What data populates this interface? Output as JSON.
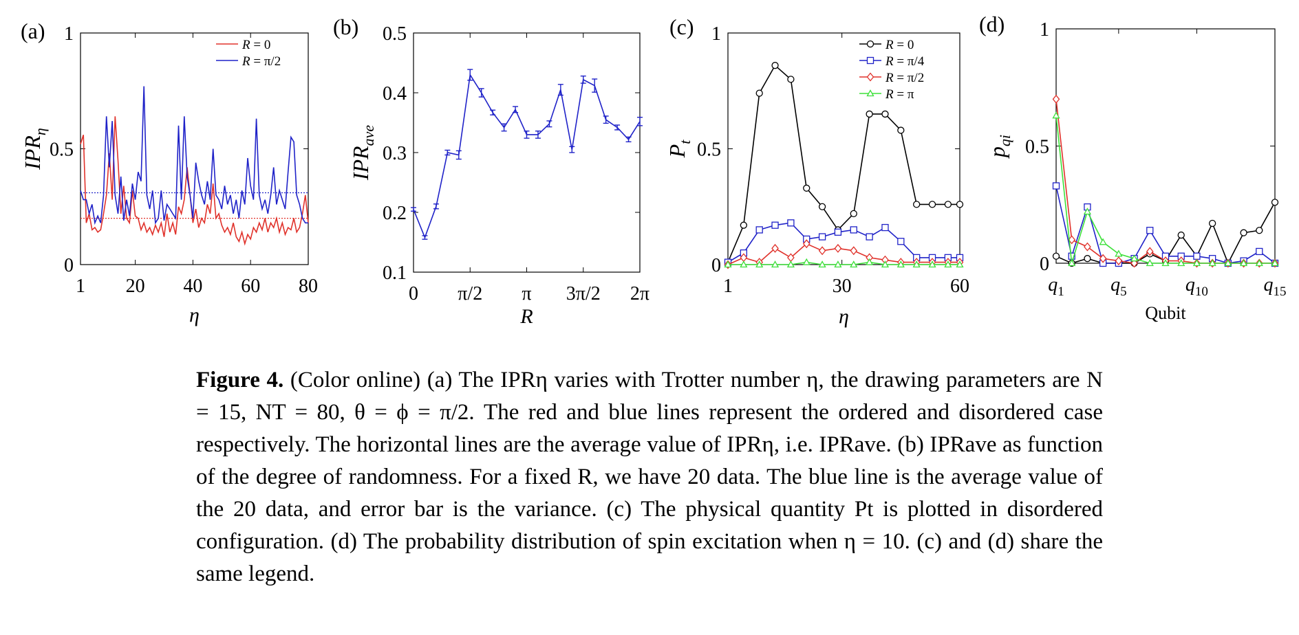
{
  "chart_data": [
    {
      "type": "line",
      "panel_label": "(a)",
      "xlabel": "η",
      "ylabel": "IPR_η",
      "xlim": [
        1,
        80
      ],
      "ylim": [
        0,
        1
      ],
      "xticks": [
        1,
        20,
        40,
        60,
        80
      ],
      "yticks": [
        0,
        0.5,
        1
      ],
      "x": [
        1,
        2,
        3,
        4,
        5,
        6,
        7,
        8,
        9,
        10,
        11,
        12,
        13,
        14,
        15,
        16,
        17,
        18,
        19,
        20,
        21,
        22,
        23,
        24,
        25,
        26,
        27,
        28,
        29,
        30,
        31,
        32,
        33,
        34,
        35,
        36,
        37,
        38,
        39,
        40,
        41,
        42,
        43,
        44,
        45,
        46,
        47,
        48,
        49,
        50,
        51,
        52,
        53,
        54,
        55,
        56,
        57,
        58,
        59,
        60,
        61,
        62,
        63,
        64,
        65,
        66,
        67,
        68,
        69,
        70,
        71,
        72,
        73,
        74,
        75,
        76,
        77,
        78,
        79,
        80
      ],
      "series": [
        {
          "name": "R = 0",
          "color": "#e0312a",
          "values": [
            0.52,
            0.56,
            0.18,
            0.22,
            0.15,
            0.16,
            0.14,
            0.15,
            0.22,
            0.3,
            0.48,
            0.28,
            0.64,
            0.45,
            0.22,
            0.34,
            0.2,
            0.18,
            0.32,
            0.21,
            0.2,
            0.15,
            0.18,
            0.14,
            0.16,
            0.13,
            0.17,
            0.14,
            0.18,
            0.12,
            0.22,
            0.14,
            0.18,
            0.13,
            0.25,
            0.22,
            0.28,
            0.42,
            0.3,
            0.18,
            0.24,
            0.16,
            0.2,
            0.18,
            0.26,
            0.22,
            0.35,
            0.2,
            0.22,
            0.17,
            0.14,
            0.16,
            0.13,
            0.18,
            0.12,
            0.1,
            0.14,
            0.09,
            0.13,
            0.11,
            0.16,
            0.14,
            0.18,
            0.15,
            0.2,
            0.14,
            0.18,
            0.16,
            0.2,
            0.14,
            0.18,
            0.13,
            0.16,
            0.15,
            0.2,
            0.14,
            0.16,
            0.22,
            0.3,
            0.18
          ]
        },
        {
          "name": "R = π/2",
          "color": "#1f22c8",
          "values": [
            0.32,
            0.28,
            0.28,
            0.22,
            0.26,
            0.18,
            0.21,
            0.18,
            0.3,
            0.64,
            0.42,
            0.62,
            0.3,
            0.22,
            0.38,
            0.19,
            0.28,
            0.21,
            0.35,
            0.28,
            0.4,
            0.36,
            0.77,
            0.3,
            0.24,
            0.32,
            0.18,
            0.2,
            0.32,
            0.19,
            0.26,
            0.24,
            0.22,
            0.2,
            0.6,
            0.28,
            0.64,
            0.38,
            0.3,
            0.2,
            0.44,
            0.36,
            0.3,
            0.26,
            0.36,
            0.28,
            0.5,
            0.3,
            0.28,
            0.24,
            0.34,
            0.26,
            0.3,
            0.22,
            0.28,
            0.2,
            0.32,
            0.26,
            0.46,
            0.34,
            0.28,
            0.63,
            0.3,
            0.24,
            0.28,
            0.22,
            0.3,
            0.42,
            0.26,
            0.32,
            0.28,
            0.24,
            0.4,
            0.55,
            0.53,
            0.3,
            0.26,
            0.2,
            0.18,
            0.18
          ]
        }
      ],
      "ave_lines": [
        {
          "name": "R = 0 average",
          "color": "#e0312a",
          "value": 0.2
        },
        {
          "name": "R = π/2 average",
          "color": "#1f22c8",
          "value": 0.31
        }
      ],
      "legend": "top-right"
    },
    {
      "type": "line",
      "panel_label": "(b)",
      "xlabel": "R",
      "ylabel": "IPR_ave",
      "xlim": [
        0,
        6.2832
      ],
      "ylim": [
        0.1,
        0.5
      ],
      "xticks": [
        0,
        1.5708,
        3.1416,
        4.7124,
        6.2832
      ],
      "xticklabels": [
        "0",
        "π/2",
        "π",
        "3π/2",
        "2π"
      ],
      "yticks": [
        0.1,
        0.2,
        0.3,
        0.4,
        0.5
      ],
      "series": [
        {
          "name": "IPR_ave",
          "color": "#1f22c8",
          "x": [
            0,
            0.31416,
            0.62832,
            0.94248,
            1.25664,
            1.5708,
            1.88496,
            2.19911,
            2.51327,
            2.82743,
            3.14159,
            3.45575,
            3.76991,
            4.08407,
            4.39823,
            4.71239,
            5.02655,
            5.34071,
            5.65487,
            5.96903,
            6.28319
          ],
          "values": [
            0.205,
            0.158,
            0.21,
            0.3,
            0.296,
            0.43,
            0.4,
            0.367,
            0.342,
            0.372,
            0.33,
            0.33,
            0.348,
            0.405,
            0.305,
            0.422,
            0.412,
            0.355,
            0.342,
            0.322,
            0.352
          ],
          "errors": [
            0.003,
            0.003,
            0.004,
            0.004,
            0.007,
            0.009,
            0.007,
            0.004,
            0.006,
            0.005,
            0.006,
            0.006,
            0.005,
            0.009,
            0.005,
            0.006,
            0.011,
            0.006,
            0.004,
            0.004,
            0.007
          ]
        }
      ]
    },
    {
      "type": "line",
      "panel_label": "(c)",
      "xlabel": "η",
      "ylabel": "P_t",
      "xlim": [
        1,
        60
      ],
      "ylim": [
        0,
        1
      ],
      "xticks": [
        1,
        30,
        60
      ],
      "yticks": [
        0,
        0.5,
        1
      ],
      "x": [
        1,
        5,
        9,
        13,
        17,
        21,
        25,
        29,
        33,
        37,
        41,
        45,
        49,
        53,
        57,
        60
      ],
      "series": [
        {
          "name": "R = 0",
          "color": "#000000",
          "marker": "circle",
          "values": [
            0.01,
            0.17,
            0.74,
            0.86,
            0.8,
            0.33,
            0.25,
            0.15,
            0.22,
            0.65,
            0.65,
            0.58,
            0.26,
            0.26,
            0.26,
            0.26
          ]
        },
        {
          "name": "R = π/4",
          "color": "#1f22c8",
          "marker": "square",
          "values": [
            0.01,
            0.05,
            0.15,
            0.17,
            0.18,
            0.11,
            0.12,
            0.14,
            0.15,
            0.12,
            0.16,
            0.1,
            0.03,
            0.03,
            0.03,
            0.03
          ]
        },
        {
          "name": "R = π/2",
          "color": "#e0312a",
          "marker": "diamond",
          "values": [
            0.0,
            0.03,
            0.01,
            0.07,
            0.03,
            0.09,
            0.06,
            0.07,
            0.06,
            0.03,
            0.02,
            0.01,
            0.01,
            0.01,
            0.01,
            0.01
          ]
        },
        {
          "name": "R = π",
          "color": "#3de03a",
          "marker": "triangle",
          "values": [
            0.0,
            0.0,
            0.0,
            0.0,
            0.0,
            0.01,
            0.0,
            0.0,
            0.0,
            0.01,
            0.0,
            0.0,
            0.0,
            0.0,
            0.0,
            0.0
          ]
        }
      ],
      "legend": "top-right"
    },
    {
      "type": "line",
      "panel_label": "(d)",
      "xlabel": "Qubit",
      "ylabel": "p_qi",
      "xlim": [
        1,
        15
      ],
      "ylim": [
        0,
        1
      ],
      "xticks": [
        1,
        5,
        10,
        15
      ],
      "xticklabels": [
        "q1",
        "q5",
        "q10",
        "q15"
      ],
      "yticks": [
        0,
        0.5,
        1
      ],
      "x": [
        1,
        2,
        3,
        4,
        5,
        6,
        7,
        8,
        9,
        10,
        11,
        12,
        13,
        14,
        15
      ],
      "series": [
        {
          "name": "R = 0",
          "color": "#000000",
          "marker": "circle",
          "values": [
            0.03,
            0.0,
            0.02,
            0.0,
            0.0,
            0.0,
            0.04,
            0.01,
            0.12,
            0.03,
            0.17,
            0.0,
            0.13,
            0.14,
            0.26
          ]
        },
        {
          "name": "R = π/4",
          "color": "#1f22c8",
          "marker": "square",
          "values": [
            0.33,
            0.03,
            0.24,
            0.0,
            0.0,
            0.02,
            0.14,
            0.03,
            0.03,
            0.03,
            0.02,
            0.0,
            0.01,
            0.05,
            0.0
          ]
        },
        {
          "name": "R = π/2",
          "color": "#e0312a",
          "marker": "diamond",
          "values": [
            0.7,
            0.1,
            0.07,
            0.02,
            0.01,
            0.0,
            0.05,
            0.01,
            0.01,
            0.0,
            0.0,
            0.0,
            0.0,
            0.0,
            0.0
          ]
        },
        {
          "name": "R = π",
          "color": "#3de03a",
          "marker": "triangle",
          "values": [
            0.63,
            0.0,
            0.22,
            0.09,
            0.04,
            0.02,
            0.0,
            0.0,
            0.0,
            0.0,
            0.0,
            0.0,
            0.0,
            0.0,
            0.0
          ]
        }
      ]
    }
  ],
  "caption": {
    "label": "Figure 4.",
    "text": "(Color online) (a) The IPRη varies with Trotter number η, the drawing parameters are N = 15, NT = 80, θ = ϕ = π/2. The red and blue lines represent the ordered and disordered case respectively. The horizontal lines are the average value of IPRη, i.e. IPRave. (b) IPRave as function of the degree of randomness. For a fixed R, we have 20 data. The blue line is the average value of the 20 data, and error bar is the variance. (c) The physical quantity Pt is plotted in disordered configuration. (d) The probability distribution of spin excitation when η = 10. (c) and (d) share the same legend."
  }
}
